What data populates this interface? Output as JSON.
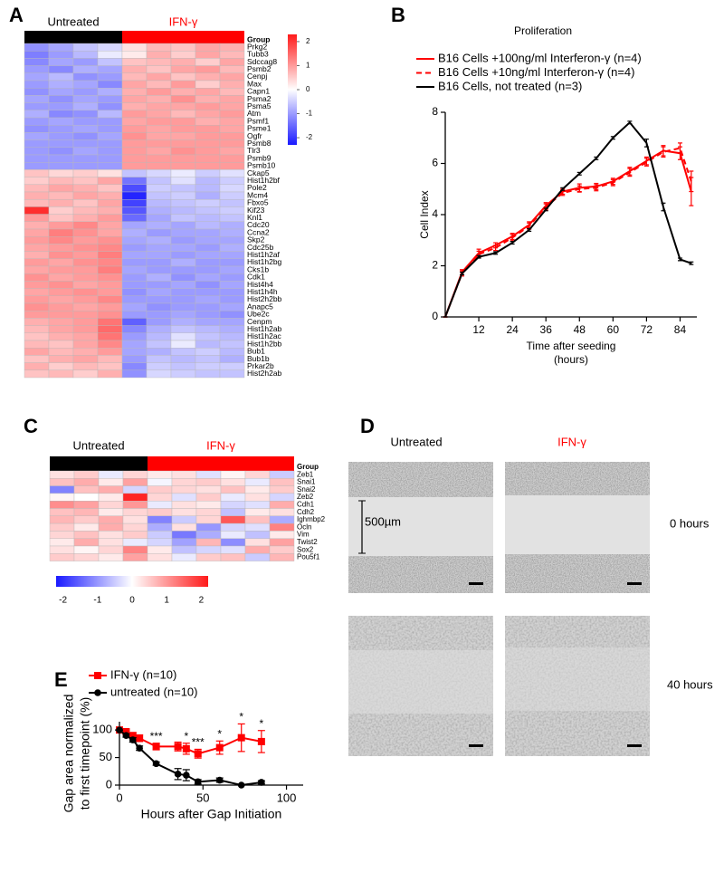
{
  "chart_data": [
    {
      "type": "heatmap",
      "label": "A",
      "group_label": "Group",
      "groups": [
        {
          "name": "Untreated",
          "color": "#000000",
          "count": 4
        },
        {
          "name": "IFN-γ",
          "color": "#ff0000",
          "count": 5
        }
      ],
      "rows": [
        "Prkg2",
        "Tubb3",
        "Sdccag8",
        "Psmb2",
        "Cenpj",
        "Max",
        "Capn1",
        "Psma2",
        "Psma5",
        "Atm",
        "Psmf1",
        "Psme1",
        "Ogfr",
        "Psmb8",
        "Tlr3",
        "Psmb9",
        "Psmb10",
        "Ckap5",
        "Hist1h2bf",
        "Pole2",
        "Mcm4",
        "Fbxo5",
        "Kif23",
        "Knl1",
        "Cdc20",
        "Ccna2",
        "Skp2",
        "Cdc25b",
        "Hist1h2af",
        "Hist1h2bg",
        "Cks1b",
        "Cdk1",
        "Hist4h4",
        "Hist1h4h",
        "Hist2h2bb",
        "Anapc5",
        "Ube2c",
        "Cenpm",
        "Hist1h2ab",
        "Hist1h2ac",
        "Hist1h2bb",
        "Bub1",
        "Bub1b",
        "Prkar2b",
        "Hist2h2ab"
      ],
      "matrix": [
        [
          -1.1,
          -0.9,
          -0.6,
          -0.4,
          0.3,
          0.7,
          0.6,
          0.9,
          0.8
        ],
        [
          -1.3,
          -1.0,
          -0.7,
          -0.2,
          0.2,
          0.8,
          0.5,
          0.9,
          0.7
        ],
        [
          -1.2,
          -0.9,
          -1.0,
          -0.6,
          0.6,
          0.7,
          0.8,
          0.5,
          0.9
        ],
        [
          -1.0,
          -1.2,
          -0.8,
          -0.9,
          0.8,
          0.6,
          0.9,
          1.0,
          0.7
        ],
        [
          -0.9,
          -0.7,
          -1.1,
          -1.0,
          0.7,
          0.9,
          0.6,
          0.8,
          0.9
        ],
        [
          -1.0,
          -0.8,
          -0.9,
          -1.2,
          0.9,
          0.7,
          1.0,
          0.5,
          0.8
        ],
        [
          -1.1,
          -0.9,
          -1.0,
          -0.8,
          0.8,
          1.0,
          0.8,
          0.9,
          0.7
        ],
        [
          -0.9,
          -1.1,
          -0.9,
          -1.0,
          0.9,
          0.8,
          1.1,
          0.8,
          0.9
        ],
        [
          -1.0,
          -1.0,
          -0.8,
          -1.1,
          0.8,
          0.9,
          0.9,
          1.0,
          0.9
        ],
        [
          -0.8,
          -1.2,
          -1.1,
          -0.7,
          1.0,
          0.9,
          0.7,
          0.9,
          1.0
        ],
        [
          -1.0,
          -0.9,
          -1.0,
          -1.0,
          0.9,
          1.0,
          1.0,
          0.8,
          0.9
        ],
        [
          -1.1,
          -1.0,
          -0.9,
          -1.0,
          1.0,
          0.9,
          1.0,
          1.0,
          0.9
        ],
        [
          -0.9,
          -1.0,
          -1.1,
          -0.9,
          1.1,
          0.9,
          0.9,
          1.0,
          1.0
        ],
        [
          -1.0,
          -1.0,
          -1.0,
          -1.0,
          1.0,
          1.0,
          1.0,
          1.0,
          1.0
        ],
        [
          -1.0,
          -1.1,
          -0.9,
          -1.0,
          1.0,
          0.9,
          1.1,
          1.0,
          0.9
        ],
        [
          -1.0,
          -1.0,
          -1.0,
          -1.0,
          1.0,
          1.0,
          1.0,
          1.0,
          1.0
        ],
        [
          -1.0,
          -1.0,
          -1.0,
          -1.0,
          1.0,
          1.0,
          1.0,
          1.0,
          1.0
        ],
        [
          0.6,
          0.4,
          0.5,
          0.3,
          -0.6,
          -0.4,
          -0.2,
          -0.5,
          -0.3
        ],
        [
          0.5,
          0.7,
          0.6,
          0.9,
          -1.4,
          -0.6,
          -0.3,
          -0.7,
          -0.5
        ],
        [
          0.7,
          0.9,
          0.8,
          0.6,
          -1.8,
          -0.5,
          -0.6,
          -0.7,
          -0.4
        ],
        [
          0.8,
          0.7,
          0.9,
          0.8,
          -2.2,
          -0.6,
          -0.5,
          -0.8,
          -0.5
        ],
        [
          0.7,
          0.8,
          0.6,
          0.9,
          -1.9,
          -0.7,
          -0.6,
          -0.5,
          -0.6
        ],
        [
          2.1,
          0.5,
          0.7,
          0.8,
          -1.7,
          -0.8,
          -0.7,
          -0.6,
          -0.5
        ],
        [
          1.0,
          0.6,
          0.8,
          1.0,
          -1.5,
          -0.9,
          -0.6,
          -0.7,
          -0.6
        ],
        [
          0.8,
          1.0,
          1.2,
          0.9,
          -0.9,
          -0.8,
          -0.9,
          -0.7,
          -0.8
        ],
        [
          0.9,
          1.3,
          1.1,
          0.9,
          -0.8,
          -1.0,
          -0.9,
          -0.9,
          -0.8
        ],
        [
          1.0,
          1.2,
          1.0,
          1.1,
          -0.9,
          -0.8,
          -1.0,
          -0.9,
          -0.9
        ],
        [
          0.9,
          1.0,
          1.1,
          1.2,
          -1.0,
          -0.9,
          -0.9,
          -1.0,
          -0.8
        ],
        [
          0.8,
          1.1,
          1.0,
          1.3,
          -0.9,
          -0.9,
          -1.0,
          -0.9,
          -0.9
        ],
        [
          1.0,
          0.9,
          1.1,
          1.2,
          -1.0,
          -1.0,
          -0.8,
          -1.0,
          -1.0
        ],
        [
          0.9,
          1.0,
          1.0,
          1.3,
          -0.9,
          -1.0,
          -1.0,
          -1.0,
          -0.9
        ],
        [
          1.1,
          0.9,
          1.0,
          1.1,
          -1.0,
          -0.8,
          -1.1,
          -0.9,
          -1.0
        ],
        [
          1.0,
          1.1,
          0.9,
          1.0,
          -1.0,
          -1.0,
          -0.9,
          -1.1,
          -0.9
        ],
        [
          0.9,
          1.0,
          1.1,
          1.0,
          -1.1,
          -0.9,
          -1.0,
          -1.0,
          -1.0
        ],
        [
          1.0,
          0.9,
          1.0,
          1.2,
          -1.0,
          -1.0,
          -1.0,
          -0.9,
          -1.0
        ],
        [
          1.1,
          1.0,
          0.9,
          1.0,
          -0.9,
          -1.1,
          -1.0,
          -1.0,
          -0.9
        ],
        [
          1.0,
          1.0,
          1.0,
          1.1,
          -1.0,
          -1.0,
          -0.9,
          -1.0,
          -1.1
        ],
        [
          0.8,
          0.9,
          1.0,
          1.4,
          -1.6,
          -1.0,
          -0.8,
          -0.9,
          -0.9
        ],
        [
          0.7,
          0.9,
          1.0,
          1.5,
          -1.2,
          -0.8,
          -0.6,
          -0.7,
          -0.8
        ],
        [
          0.6,
          0.8,
          0.9,
          1.4,
          -1.0,
          -0.7,
          -0.3,
          -0.6,
          -0.7
        ],
        [
          0.7,
          0.6,
          0.9,
          1.2,
          -0.9,
          -0.6,
          -0.2,
          -0.7,
          -0.6
        ],
        [
          0.9,
          0.7,
          0.8,
          1.0,
          -0.9,
          -0.8,
          -0.6,
          -0.5,
          -0.7
        ],
        [
          0.6,
          0.8,
          0.9,
          0.7,
          -1.0,
          -0.6,
          -0.7,
          -0.6,
          -0.8
        ],
        [
          0.8,
          0.5,
          0.7,
          0.6,
          -1.2,
          -0.5,
          -0.6,
          -0.5,
          -0.5
        ],
        [
          0.6,
          0.7,
          0.5,
          0.8,
          -1.1,
          -0.4,
          -0.5,
          -0.6,
          -0.6
        ]
      ],
      "vlim": [
        -2.3,
        2.3
      ],
      "colorbar_ticks": [
        2,
        1,
        0,
        -1,
        -2
      ],
      "colorbar": "vertical",
      "colors": {
        "low": "#1a1aff",
        "mid": "#ffffff",
        "high": "#ff1a1a"
      }
    },
    {
      "type": "line",
      "label": "B",
      "title": "Proliferation",
      "x": [
        0,
        6,
        12,
        18,
        24,
        30,
        36,
        42,
        48,
        54,
        60,
        66,
        72,
        78,
        84,
        88
      ],
      "series": [
        {
          "name": "B16 Cells +100ng/ml Interferon-γ (n=4)",
          "color": "#ff0000",
          "linestyle": "solid",
          "values": [
            0,
            1.75,
            2.5,
            2.8,
            3.15,
            3.6,
            4.35,
            4.9,
            5.05,
            5.1,
            5.3,
            5.7,
            6.1,
            6.5,
            6.4,
            4.9
          ],
          "errors": [
            0,
            0.1,
            0.15,
            0.1,
            0.12,
            0.12,
            0.12,
            0.1,
            0.15,
            0.12,
            0.12,
            0.15,
            0.15,
            0.2,
            0.25,
            0.55
          ]
        },
        {
          "name": "B16 Cells +10ng/ml Interferon-γ (n=4)",
          "color": "#ff0000",
          "linestyle": "dashed",
          "values": [
            0,
            1.7,
            2.45,
            2.7,
            3.1,
            3.55,
            4.3,
            4.85,
            5.0,
            5.05,
            5.25,
            5.65,
            6.05,
            6.45,
            6.6,
            5.3
          ],
          "errors": [
            0,
            0.1,
            0.12,
            0.1,
            0.12,
            0.12,
            0.12,
            0.1,
            0.12,
            0.12,
            0.12,
            0.15,
            0.15,
            0.2,
            0.2,
            0.4
          ]
        },
        {
          "name": "B16 Cells, not treated (n=3)",
          "color": "#000000",
          "linestyle": "solid",
          "values": [
            0,
            1.7,
            2.35,
            2.5,
            2.9,
            3.4,
            4.2,
            5.0,
            5.6,
            6.2,
            7.0,
            7.6,
            6.8,
            4.3,
            2.25,
            2.1
          ],
          "errors": [
            0,
            0.05,
            0.05,
            0.05,
            0.05,
            0.05,
            0.05,
            0.05,
            0.05,
            0.05,
            0.05,
            0.05,
            0.15,
            0.15,
            0.05,
            0.05
          ]
        }
      ],
      "xlim": [
        0,
        90
      ],
      "ylim": [
        0,
        8
      ],
      "xticks": [
        12,
        24,
        36,
        48,
        60,
        72,
        84
      ],
      "yticks": [
        0,
        2,
        4,
        6,
        8
      ],
      "xlabel": [
        "Time after seeding",
        "(hours)"
      ],
      "ylabel": [
        "Cell Index"
      ]
    },
    {
      "type": "heatmap",
      "label": "C",
      "group_label": "Group",
      "groups": [
        {
          "name": "Untreated",
          "color": "#000000",
          "count": 4
        },
        {
          "name": "IFN-γ",
          "color": "#ff0000",
          "count": 6
        }
      ],
      "rows": [
        "Zeb1",
        "Snai1",
        "Snai2",
        "Zeb2",
        "Cdh1",
        "Cdh2",
        "Ighmbp2",
        "Ocln",
        "Vim",
        "Twist2",
        "Sox2",
        "Pou5f1"
      ],
      "matrix": [
        [
          0.3,
          0.5,
          -0.2,
          0.4,
          0.2,
          0.3,
          -0.3,
          0.1,
          0.4,
          -0.5
        ],
        [
          0.6,
          0.8,
          0.2,
          0.9,
          -0.1,
          0.4,
          0.5,
          0.3,
          -0.2,
          0.6
        ],
        [
          -1.2,
          0.6,
          0.8,
          -0.4,
          0.5,
          0.4,
          0.3,
          0.6,
          0.2,
          0.5
        ],
        [
          0.1,
          0.0,
          0.2,
          2.1,
          0.4,
          -0.3,
          0.5,
          -0.2,
          0.3,
          -0.4
        ],
        [
          1.1,
          0.9,
          0.4,
          1.0,
          -0.2,
          0.3,
          0.2,
          -0.4,
          -0.3,
          0.8
        ],
        [
          0.6,
          0.7,
          0.2,
          0.4,
          0.5,
          0.3,
          0.4,
          -0.6,
          0.2,
          0.3
        ],
        [
          0.7,
          0.5,
          0.8,
          0.3,
          -1.2,
          -0.5,
          0.4,
          1.6,
          0.6,
          -0.8
        ],
        [
          0.5,
          0.2,
          0.8,
          0.4,
          -0.8,
          0.3,
          -1.0,
          -0.4,
          -0.3,
          1.2
        ],
        [
          0.4,
          0.6,
          0.3,
          0.5,
          -0.5,
          -1.3,
          -0.8,
          -0.2,
          -0.6,
          0.2
        ],
        [
          0.2,
          0.8,
          0.3,
          -0.2,
          -0.4,
          -0.9,
          0.7,
          -1.1,
          0.3,
          0.9
        ],
        [
          0.3,
          0.1,
          0.4,
          1.2,
          0.2,
          -0.6,
          -0.4,
          -0.3,
          0.8,
          0.5
        ],
        [
          0.5,
          0.4,
          0.2,
          0.9,
          0.3,
          -0.2,
          0.5,
          0.6,
          -0.5,
          0.7
        ]
      ],
      "vlim": [
        -2.2,
        2.2
      ],
      "colorbar_ticks": [
        -2,
        -1,
        0,
        1,
        2
      ],
      "colorbar": "horizontal",
      "colors": {
        "low": "#1a1aff",
        "mid": "#ffffff",
        "high": "#ff1a1a"
      }
    },
    {
      "type": "line",
      "label": "E",
      "x": [
        0,
        4,
        8,
        12,
        22,
        35,
        40,
        47,
        60,
        73,
        85
      ],
      "series": [
        {
          "name": "IFN-γ (n=10)",
          "color": "#ff0000",
          "linestyle": "solid",
          "marker": "square",
          "values": [
            100,
            97,
            90,
            85,
            70,
            70,
            66,
            57,
            68,
            86,
            79
          ],
          "errors": [
            0,
            3,
            5,
            6,
            6,
            8,
            10,
            8,
            12,
            25,
            20
          ]
        },
        {
          "name": "untreated (n=10)",
          "color": "#000000",
          "linestyle": "solid",
          "marker": "circle",
          "values": [
            100,
            90,
            82,
            67,
            39,
            20,
            18,
            6,
            9,
            0,
            5
          ],
          "errors": [
            0,
            3,
            4,
            4,
            3,
            10,
            10,
            4,
            4,
            0,
            3
          ]
        }
      ],
      "annotations": [
        {
          "x": 22,
          "label": "***"
        },
        {
          "x": 40,
          "label": "*"
        },
        {
          "x": 47,
          "label": "***"
        },
        {
          "x": 60,
          "label": "*"
        },
        {
          "x": 73,
          "label": "*"
        },
        {
          "x": 85,
          "label": "*"
        }
      ],
      "xlim": [
        0,
        110
      ],
      "ylim": [
        0,
        115
      ],
      "xticks": [
        0,
        50,
        100
      ],
      "yticks": [
        0,
        50,
        100
      ],
      "xlabel": [
        "Hours after Gap Initiation"
      ],
      "ylabel": [
        "Gap area normalized",
        "to first timepoint (%)"
      ]
    }
  ],
  "micrograph": {
    "label": "D",
    "columns": [
      "Untreated",
      "IFN-γ"
    ],
    "rows": [
      "0 hours",
      "40 hours"
    ],
    "scale_bar": "500µm"
  }
}
